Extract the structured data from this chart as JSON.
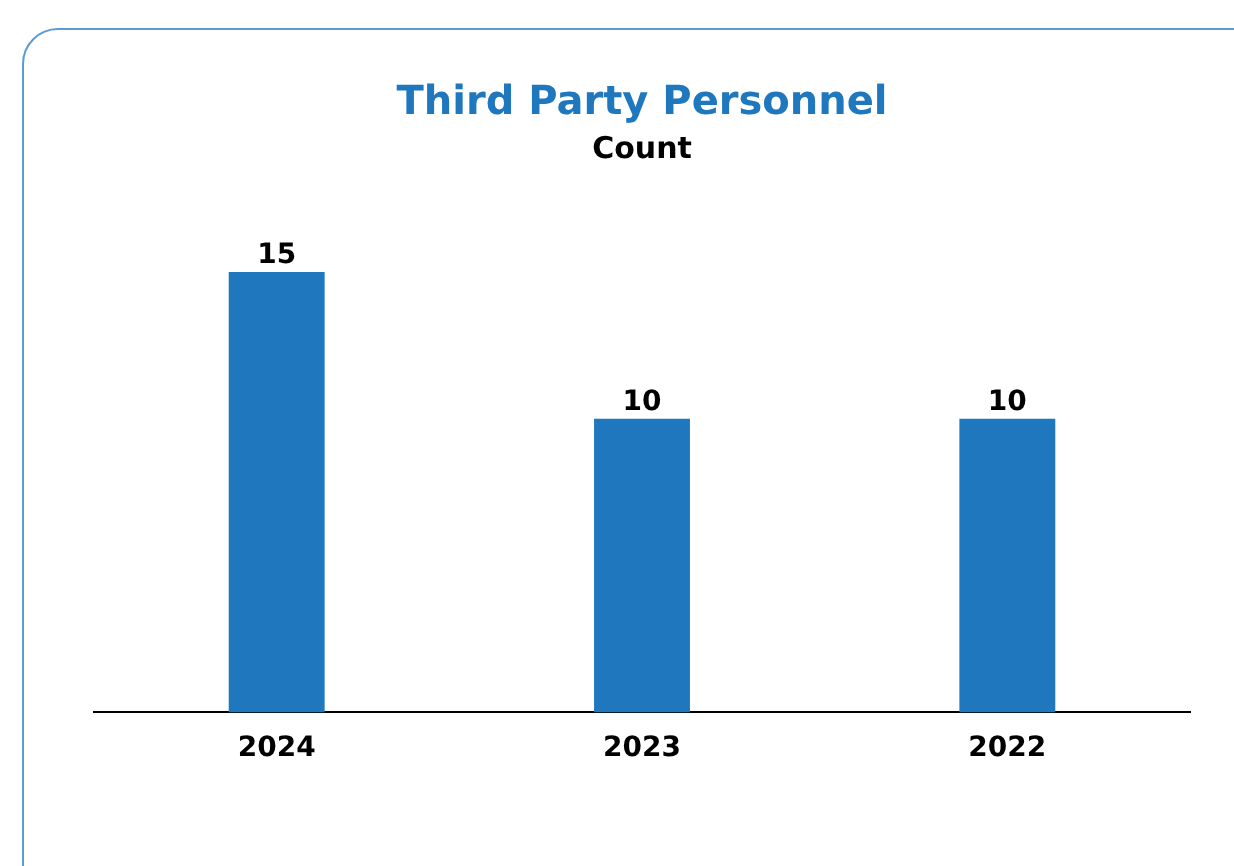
{
  "chart_data": {
    "type": "bar",
    "title": "Third Party Personnel",
    "subtitle": "Count",
    "categories": [
      "2024",
      "2023",
      "2022"
    ],
    "values": [
      15,
      10,
      10
    ],
    "color": "#1f77bd",
    "data_labels": true,
    "grid": false,
    "legend": false
  }
}
